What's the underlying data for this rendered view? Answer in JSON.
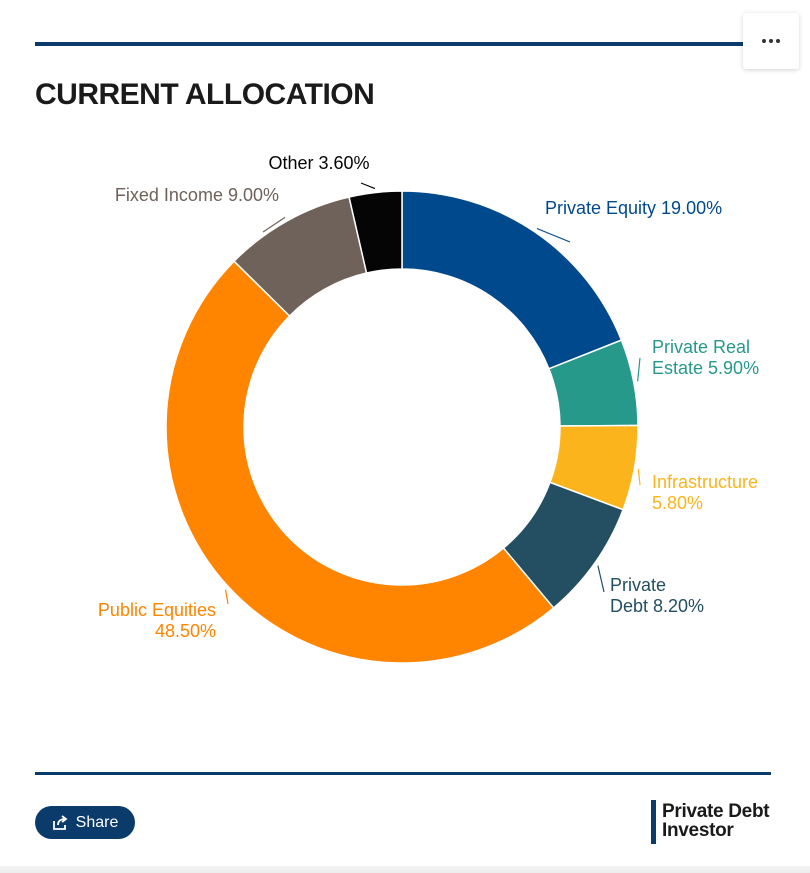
{
  "header": {
    "title": "CURRENT ALLOCATION",
    "menu_icon": "more-horizontal-icon"
  },
  "chart_data": {
    "type": "pie",
    "donut": true,
    "categories": [
      "Private Equity",
      "Private Real Estate",
      "Infrastructure",
      "Private Debt",
      "Public Equities",
      "Fixed Income",
      "Other"
    ],
    "values": [
      19.0,
      5.9,
      5.8,
      8.2,
      48.5,
      9.0,
      3.6
    ],
    "unit": "%",
    "colors": [
      "#00498d",
      "#26998a",
      "#fbb41c",
      "#244e62",
      "#ff8400",
      "#6e625a",
      "#050505"
    ],
    "labels": [
      [
        "Private Equity 19.00%"
      ],
      [
        "Private Real",
        "Estate 5.90%"
      ],
      [
        "Infrastructure",
        "5.80%"
      ],
      [
        "Private",
        "Debt 8.20%"
      ],
      [
        "Public Equities",
        "48.50%"
      ],
      [
        "Fixed Income 9.00%"
      ],
      [
        "Other 3.60%"
      ]
    ],
    "label_colors": [
      "#00498d",
      "#26998a",
      "#fbb41c",
      "#244e62",
      "#ff8400",
      "#6e625a",
      "#050505"
    ],
    "legend": "none"
  },
  "footer": {
    "share_label": "Share",
    "share_icon": "share-icon",
    "logo_line1": "Private Debt",
    "logo_line2": "Investor"
  },
  "colors": {
    "accent": "#0b3b6a"
  }
}
